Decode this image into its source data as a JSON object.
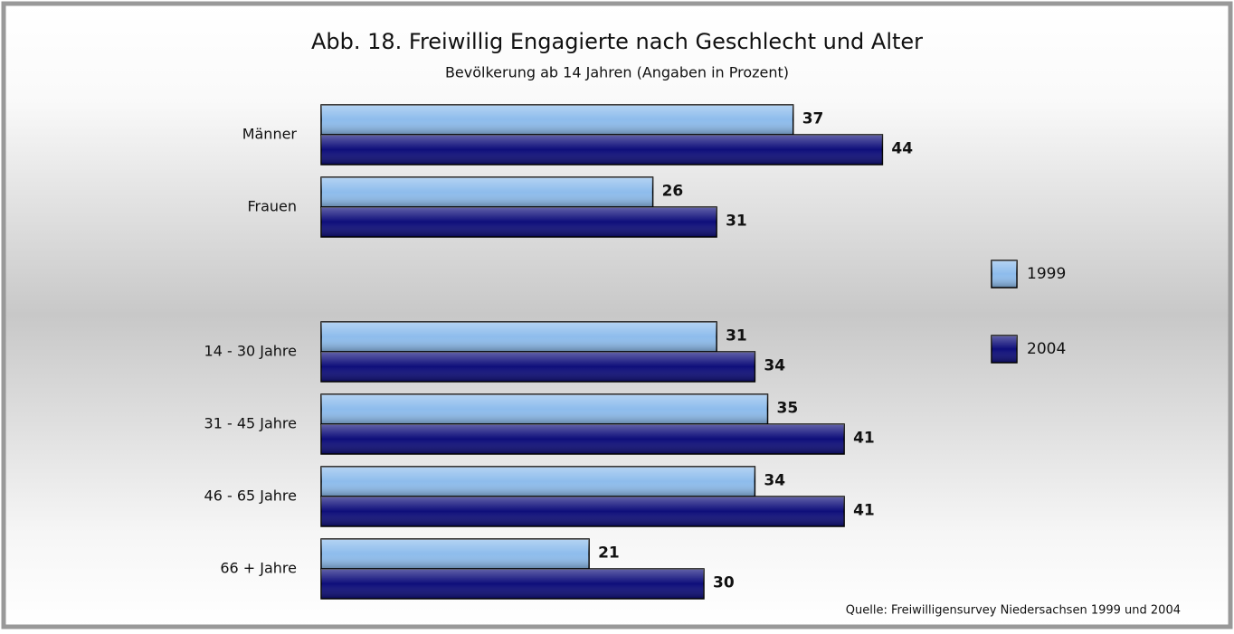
{
  "chart_data": {
    "type": "bar",
    "orientation": "horizontal",
    "title": "Abb. 18. Freiwillig Engagierte nach Geschlecht und Alter",
    "subtitle": "Bevölkerung ab 14 Jahren (Angaben in Prozent)",
    "categories": [
      "Männer",
      "Frauen",
      null,
      "14 - 30 Jahre",
      "31 - 45 Jahre",
      "46 - 65 Jahre",
      "66 + Jahre"
    ],
    "series": [
      {
        "name": "1999",
        "color": "#8dbcec",
        "values": [
          37,
          26,
          null,
          31,
          35,
          34,
          21
        ]
      },
      {
        "name": "2004",
        "color": "#0e0e7a",
        "values": [
          44,
          31,
          null,
          34,
          41,
          41,
          30
        ]
      }
    ],
    "legend": "right",
    "source": "Quelle: Freiwilligensurvey Niedersachsen 1999 und 2004"
  }
}
